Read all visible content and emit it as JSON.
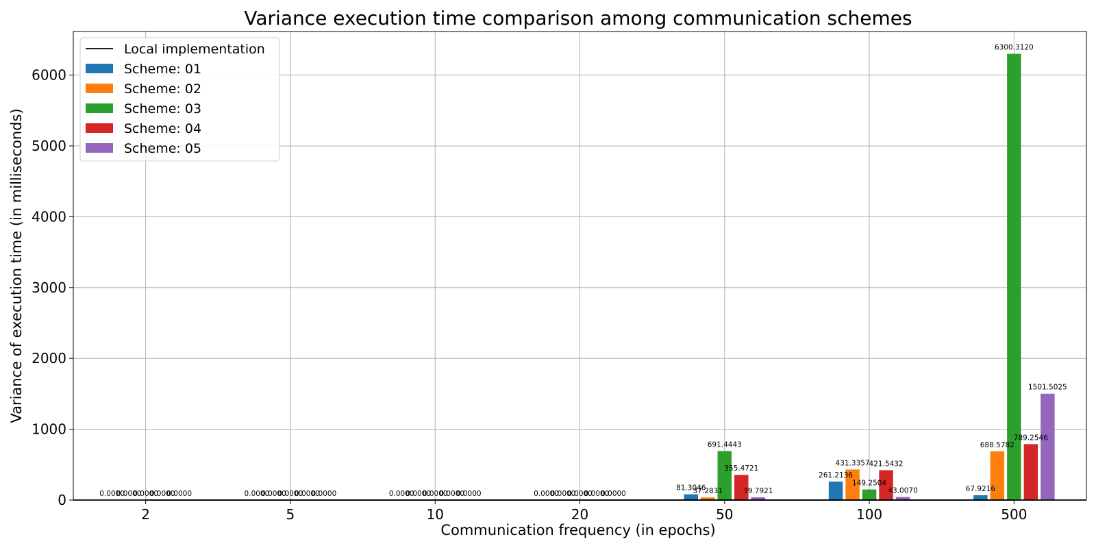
{
  "chart_data": {
    "type": "bar",
    "title": "Variance execution time comparison among communication schemes",
    "xlabel": "Communication frequency (in epochs)",
    "ylabel": "Variance of execution time (in milliseconds)",
    "categories": [
      "2",
      "5",
      "10",
      "20",
      "50",
      "100",
      "500"
    ],
    "ylim": [
      0,
      6615
    ],
    "yticks": [
      0,
      1000,
      2000,
      3000,
      4000,
      5000,
      6000
    ],
    "grid": true,
    "legend_position": "top-left",
    "reference_line": {
      "name": "Local implementation",
      "values": [
        0,
        0,
        0,
        0,
        0,
        0,
        0
      ],
      "color": "#000000"
    },
    "series": [
      {
        "name": "Scheme: 01",
        "color": "#1f77b4",
        "values": [
          0,
          0,
          0,
          0,
          81.3046,
          261.2136,
          67.9216
        ],
        "labels": [
          "0.0000",
          "0.0000",
          "0.0000",
          "0.0000",
          "81.3046",
          "261.2136",
          "67.9216"
        ]
      },
      {
        "name": "Scheme: 02",
        "color": "#ff7f0e",
        "values": [
          0,
          0,
          0,
          0,
          37.2831,
          431.3357,
          688.5782
        ],
        "labels": [
          "0.0000",
          "0.0000",
          "0.0000",
          "0.0000",
          "37.2831",
          "431.3357",
          "688.5782"
        ]
      },
      {
        "name": "Scheme: 03",
        "color": "#2ca02c",
        "values": [
          0,
          0,
          0,
          0,
          691.4443,
          149.2504,
          6300.312
        ],
        "labels": [
          "0.0000",
          "0.0000",
          "0.0000",
          "0.0000",
          "691.4443",
          "149.2504",
          "6300.3120"
        ]
      },
      {
        "name": "Scheme: 04",
        "color": "#d62728",
        "values": [
          0,
          0,
          0,
          0,
          355.4721,
          421.5432,
          789.2546
        ],
        "labels": [
          "0.0000",
          "0.0000",
          "0.0000",
          "0.0000",
          "355.4721",
          "421.5432",
          "789.2546"
        ]
      },
      {
        "name": "Scheme: 05",
        "color": "#9467bd",
        "values": [
          0,
          0,
          0,
          0,
          39.7921,
          43.007,
          1501.5025
        ],
        "labels": [
          "0.0000",
          "0.0000",
          "0.0000",
          "0.0000",
          "39.7921",
          "43.0070",
          "1501.5025"
        ]
      }
    ]
  }
}
